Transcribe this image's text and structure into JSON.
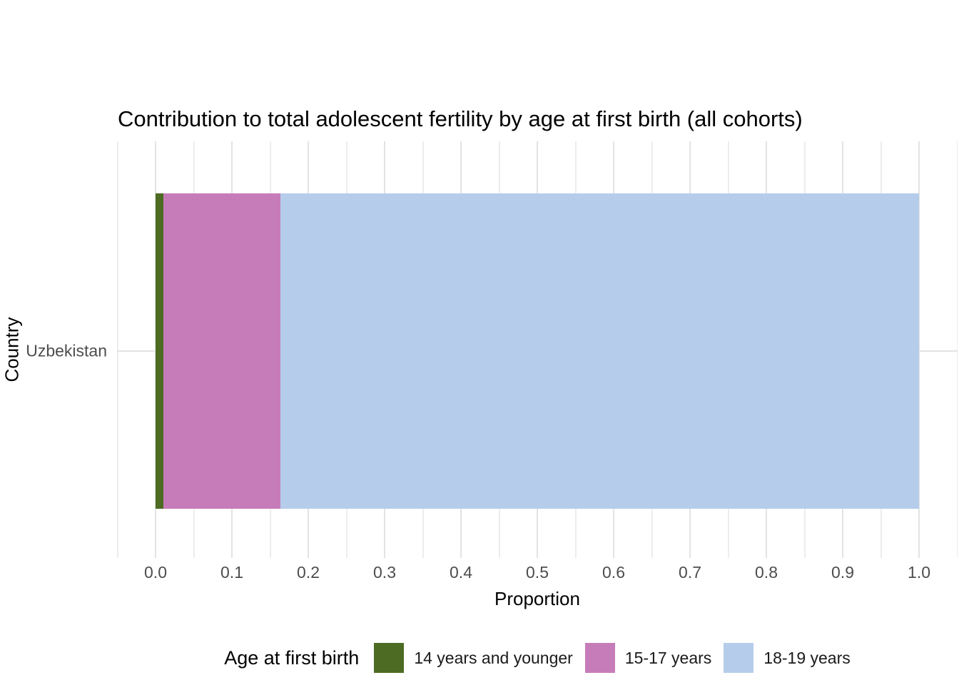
{
  "chart_data": {
    "type": "bar",
    "orientation": "horizontal",
    "stacked": true,
    "title": "Contribution to total adolescent fertility by age at first birth (all cohorts)",
    "xlabel": "Proportion",
    "ylabel": "Country",
    "categories": [
      "Uzbekistan"
    ],
    "series": [
      {
        "name": "14 years and younger",
        "color": "#4d6b23",
        "values": [
          0.01
        ]
      },
      {
        "name": "15-17 years",
        "color": "#c77cba",
        "values": [
          0.154
        ]
      },
      {
        "name": "18-19 years",
        "color": "#b5cdeb",
        "values": [
          0.836
        ]
      }
    ],
    "xlim": [
      0,
      1
    ],
    "x_tick_values": [
      0,
      0.1,
      0.2,
      0.3,
      0.4,
      0.5,
      0.6,
      0.7,
      0.8,
      0.9,
      1.0
    ],
    "x_tick_labels": [
      "0.0",
      "0.1",
      "0.2",
      "0.3",
      "0.4",
      "0.5",
      "0.6",
      "0.7",
      "0.8",
      "0.9",
      "1.0"
    ],
    "grid": "major and minor vertical gridlines, one horizontal major line",
    "legend_title": "Age at first birth",
    "legend_position": "bottom"
  },
  "colors": {
    "background": "#ffffff",
    "grid_major": "#e3e3e3",
    "grid_minor": "#ededed",
    "axis_text": "#4d4d4d",
    "title_text": "#000000"
  }
}
